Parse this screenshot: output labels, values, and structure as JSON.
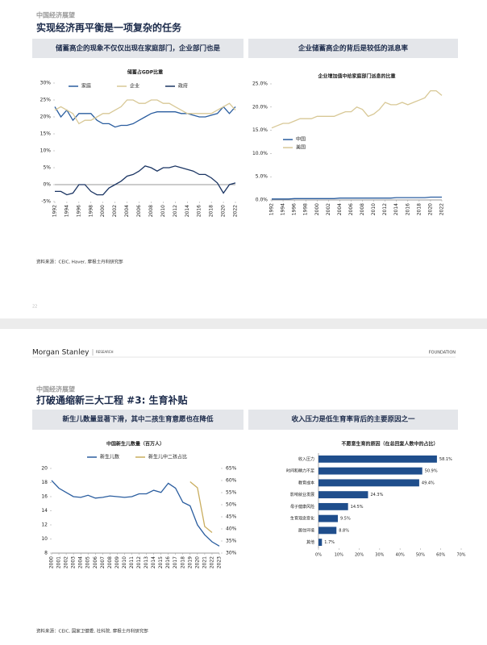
{
  "pages": [
    {
      "kicker": "中国经济展望",
      "title": "实现经济再平衡是一项复杂的任务",
      "panels": [
        "储蓄高企的现象不仅仅出现在家庭部门，企业部门也是",
        "企业储蓄高企的背后是较低的派息率"
      ],
      "source": "资料来源：CEIC, Haver, 摩根士丹利研究部",
      "page_number": "22"
    },
    {
      "brand": "Morgan Stanley",
      "brand_tag": "RESEARCH",
      "right_tag": "FOUNDATION",
      "kicker": "中国经济展望",
      "title": "打破通缩新三大工程 #3: 生育补贴",
      "panels": [
        "新生儿数量显著下滑，其中二孩生育意愿也在降低",
        "收入压力是低生育率背后的主要原因之一"
      ],
      "source": "资料来源：CEIC, 国家卫健委, 社科院, 摩根士丹利研究部"
    }
  ],
  "chart_data": [
    {
      "type": "line",
      "title": "储蓄占GDP比重",
      "legend": "top",
      "x": [
        1992,
        1993,
        1994,
        1995,
        1996,
        1997,
        1998,
        1999,
        2000,
        2001,
        2002,
        2003,
        2004,
        2005,
        2006,
        2007,
        2008,
        2009,
        2010,
        2011,
        2012,
        2013,
        2014,
        2015,
        2016,
        2017,
        2018,
        2019,
        2020,
        2021,
        2022
      ],
      "xlim": [
        1992,
        2022
      ],
      "xticks": [
        1992,
        1994,
        1996,
        1998,
        2000,
        2002,
        2004,
        2006,
        2008,
        2010,
        2012,
        2014,
        2016,
        2018,
        2020,
        2022
      ],
      "ylim": [
        -5,
        30
      ],
      "yticks": [
        {
          "value": -5,
          "label": "-5%"
        },
        {
          "value": 0,
          "label": "0%"
        },
        {
          "value": 5,
          "label": "5%"
        },
        {
          "value": 10,
          "label": "10%"
        },
        {
          "value": 15,
          "label": "15%"
        },
        {
          "value": 20,
          "label": "20%"
        },
        {
          "value": 25,
          "label": "25%"
        },
        {
          "value": 30,
          "label": "30%"
        }
      ],
      "series": [
        {
          "name": "家庭",
          "color": "#2a5d9f",
          "values": [
            23,
            20,
            22,
            19,
            21,
            21,
            21,
            19,
            18,
            18,
            17,
            17.5,
            17.5,
            18,
            19,
            20,
            21,
            21.5,
            21.5,
            21.5,
            21.5,
            21,
            21,
            20.5,
            20,
            20,
            20.5,
            21,
            23,
            21,
            23
          ]
        },
        {
          "name": "企业",
          "color": "#d8c896",
          "values": [
            22,
            23,
            22,
            21,
            18,
            19,
            19,
            20,
            21,
            21,
            22,
            23,
            25,
            25,
            24,
            24,
            25,
            25,
            24,
            24,
            23,
            22,
            21,
            21,
            21,
            21,
            21,
            22,
            23,
            24,
            22
          ]
        },
        {
          "name": "政府",
          "color": "#1b3563",
          "values": [
            -2,
            -2,
            -3,
            -2.5,
            0,
            0,
            -2,
            -3,
            -3,
            -1,
            0,
            1,
            2.5,
            3,
            4,
            5.5,
            5,
            4,
            5,
            5,
            5.5,
            5,
            4.5,
            4,
            3,
            3,
            2,
            0.5,
            -2.5,
            0,
            0.5
          ]
        }
      ]
    },
    {
      "type": "line",
      "title": "企业增加值中给家庭部门派息的比重",
      "legend": "left",
      "x": [
        1992,
        1993,
        1994,
        1995,
        1996,
        1997,
        1998,
        1999,
        2000,
        2001,
        2002,
        2003,
        2004,
        2005,
        2006,
        2007,
        2008,
        2009,
        2010,
        2011,
        2012,
        2013,
        2014,
        2015,
        2016,
        2017,
        2018,
        2019,
        2020,
        2021,
        2022
      ],
      "xlim": [
        1992,
        2022
      ],
      "xticks": [
        1992,
        1994,
        1996,
        1998,
        2000,
        2002,
        2004,
        2006,
        2008,
        2010,
        2012,
        2014,
        2016,
        2018,
        2020,
        2022
      ],
      "ylim": [
        0,
        25
      ],
      "yticks": [
        {
          "value": 0,
          "label": "0.0%"
        },
        {
          "value": 5,
          "label": "5.0%"
        },
        {
          "value": 10,
          "label": "10.0%"
        },
        {
          "value": 15,
          "label": "15.0%"
        },
        {
          "value": 20,
          "label": "20.0%"
        },
        {
          "value": 25,
          "label": "25.0%"
        }
      ],
      "series": [
        {
          "name": "中国",
          "color": "#2a5d9f",
          "values": [
            0.2,
            0.2,
            0.2,
            0.2,
            0.3,
            0.3,
            0.3,
            0.3,
            0.3,
            0.3,
            0.3,
            0.3,
            0.4,
            0.4,
            0.4,
            0.4,
            0.4,
            0.4,
            0.4,
            0.4,
            0.4,
            0.4,
            0.5,
            0.5,
            0.5,
            0.5,
            0.5,
            0.5,
            0.6,
            0.6,
            0.6
          ]
        },
        {
          "name": "美国",
          "color": "#d8c896",
          "values": [
            15.5,
            16,
            16.5,
            16.5,
            17,
            17.5,
            17.5,
            17.5,
            18,
            18,
            18,
            18,
            18.5,
            19,
            19,
            20,
            19.5,
            18,
            18.5,
            19.5,
            21,
            20.5,
            20.5,
            21,
            20.5,
            21,
            21.5,
            22,
            23.5,
            23.5,
            22.5
          ]
        }
      ]
    },
    {
      "type": "line",
      "title": "中国新生儿数量（百万人）",
      "legend": "top",
      "x": [
        2000,
        2001,
        2002,
        2003,
        2004,
        2005,
        2006,
        2007,
        2008,
        2009,
        2010,
        2011,
        2012,
        2013,
        2014,
        2015,
        2016,
        2017,
        2018,
        2019,
        2020,
        2021,
        2022,
        2023
      ],
      "xlim": [
        2000,
        2023
      ],
      "xticks": [
        2000,
        2001,
        2002,
        2003,
        2004,
        2005,
        2006,
        2007,
        2008,
        2009,
        2010,
        2011,
        2012,
        2013,
        2014,
        2015,
        2016,
        2017,
        2018,
        2019,
        2020,
        2021,
        2022,
        2023
      ],
      "ylim": [
        8,
        20
      ],
      "yticks": [
        8,
        10,
        12,
        14,
        16,
        18,
        20
      ],
      "y2lim": [
        30,
        65
      ],
      "y2ticks": [
        {
          "value": 30,
          "label": "30%"
        },
        {
          "value": 35,
          "label": "35%"
        },
        {
          "value": 40,
          "label": "40%"
        },
        {
          "value": 45,
          "label": "45%"
        },
        {
          "value": 50,
          "label": "50%"
        },
        {
          "value": 55,
          "label": "55%"
        },
        {
          "value": 60,
          "label": "60%"
        },
        {
          "value": 65,
          "label": "65%"
        }
      ],
      "series": [
        {
          "name": "新生儿数",
          "color": "#2a5d9f",
          "values": [
            18.3,
            17.2,
            16.6,
            16,
            15.9,
            16.2,
            15.8,
            15.9,
            16.1,
            16,
            15.9,
            16,
            16.4,
            16.4,
            16.9,
            16.6,
            17.9,
            17.2,
            15.2,
            14.7,
            12,
            10.6,
            9.6,
            9
          ]
        },
        {
          "name": "新生儿中二孩占比",
          "color": "#c9ad5e",
          "axis": "y2",
          "values": [
            null,
            null,
            null,
            null,
            null,
            null,
            null,
            null,
            null,
            null,
            null,
            null,
            null,
            null,
            null,
            null,
            null,
            null,
            null,
            59.5,
            57,
            41,
            38.5,
            null
          ]
        }
      ]
    },
    {
      "type": "barh",
      "title": "不愿意生育的原因（在总回复人数中的占比）",
      "color": "#1f4e8c",
      "categories": [
        "收入压力",
        "时间和精力不足",
        "教育成本",
        "影响就业发展",
        "母子健康风险",
        "生育观念变化",
        "居住环境",
        "其他"
      ],
      "values": [
        58.1,
        50.9,
        49.4,
        24.3,
        14.5,
        9.5,
        8.8,
        1.7
      ],
      "value_labels": [
        "58.1%",
        "50.9%",
        "49.4%",
        "24.3%",
        "14.5%",
        "9.5%",
        "8.8%",
        "1.7%"
      ],
      "xlim": [
        0,
        70
      ],
      "xticks": [
        {
          "value": 0,
          "label": "0%"
        },
        {
          "value": 10,
          "label": "10%"
        },
        {
          "value": 20,
          "label": "20%"
        },
        {
          "value": 30,
          "label": "30%"
        },
        {
          "value": 40,
          "label": "40%"
        },
        {
          "value": 50,
          "label": "50%"
        },
        {
          "value": 60,
          "label": "60%"
        },
        {
          "value": 70,
          "label": "70%"
        }
      ]
    }
  ]
}
